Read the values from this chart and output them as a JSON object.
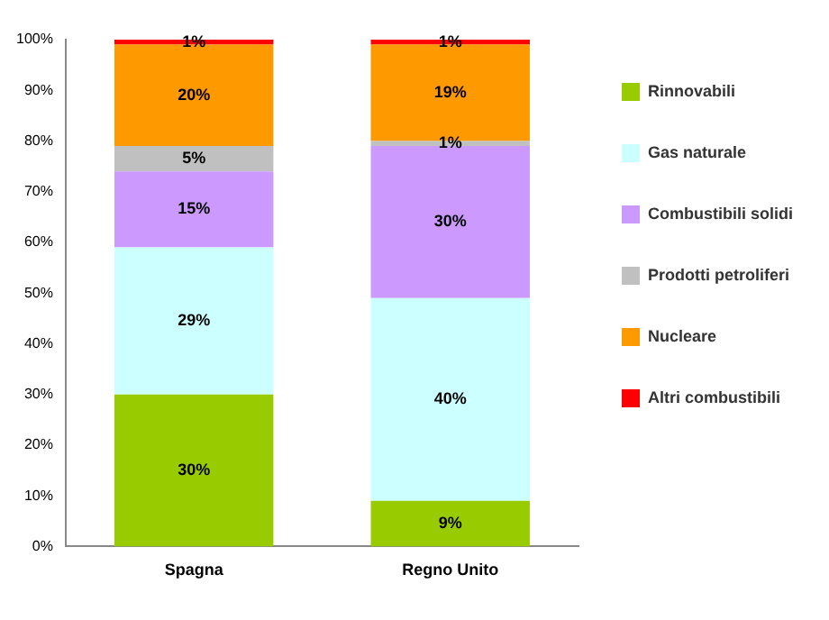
{
  "chart_data": {
    "type": "bar",
    "stacked": true,
    "categories": [
      "Spagna",
      "Regno Unito"
    ],
    "series": [
      {
        "name": "Rinnovabili",
        "color": "#99cc00",
        "values": [
          30,
          9
        ],
        "value_labels": [
          "30%",
          "9%"
        ]
      },
      {
        "name": "Gas naturale",
        "color": "#ccffff",
        "values": [
          29,
          40
        ],
        "value_labels": [
          "29%",
          "40%"
        ]
      },
      {
        "name": "Combustibili solidi",
        "color": "#cc99ff",
        "values": [
          15,
          30
        ],
        "value_labels": [
          "15%",
          "30%"
        ]
      },
      {
        "name": "Prodotti petroliferi",
        "color": "#c0c0c0",
        "values": [
          5,
          1
        ],
        "value_labels": [
          "5%",
          "1%"
        ]
      },
      {
        "name": "Nucleare",
        "color": "#ff9900",
        "values": [
          20,
          19
        ],
        "value_labels": [
          "20%",
          "19%"
        ]
      },
      {
        "name": "Altri combustibili",
        "color": "#ff0000",
        "values": [
          1,
          1
        ],
        "value_labels": [
          "1%",
          "1%"
        ]
      }
    ],
    "ylim": [
      0,
      100
    ],
    "yticks": [
      {
        "value": 0,
        "label": "0%"
      },
      {
        "value": 10,
        "label": "10%"
      },
      {
        "value": 20,
        "label": "20%"
      },
      {
        "value": 30,
        "label": "30%"
      },
      {
        "value": 40,
        "label": "40%"
      },
      {
        "value": 50,
        "label": "50%"
      },
      {
        "value": 60,
        "label": "60%"
      },
      {
        "value": 70,
        "label": "70%"
      },
      {
        "value": 80,
        "label": "80%"
      },
      {
        "value": 90,
        "label": "90%"
      },
      {
        "value": 100,
        "label": "100%"
      }
    ],
    "grid": false,
    "legend": "right"
  }
}
